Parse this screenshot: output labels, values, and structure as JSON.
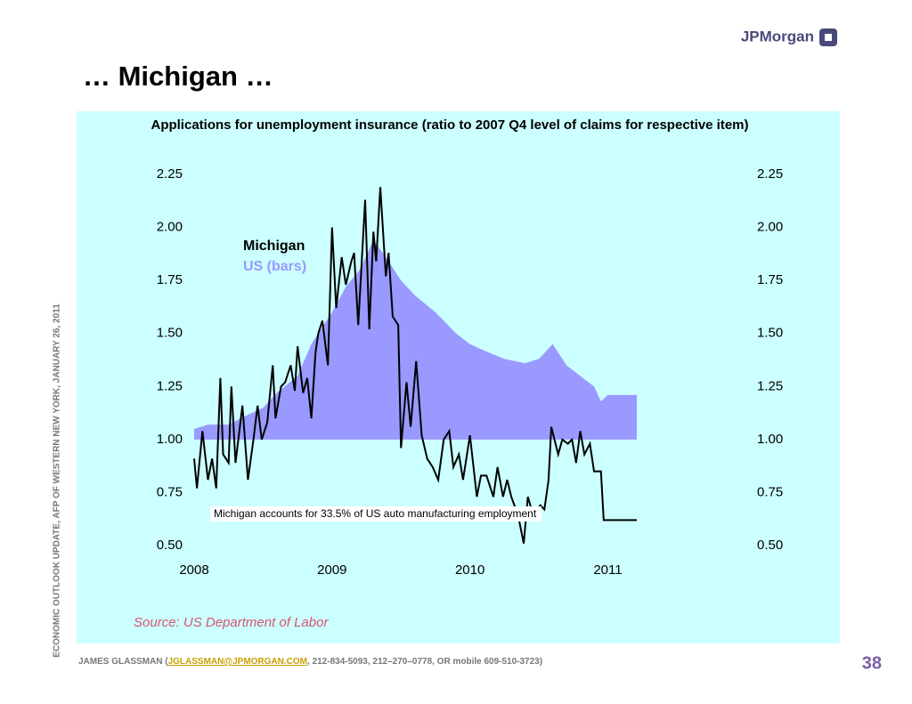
{
  "header": {
    "title": "… Michigan …",
    "logo": "JPMorgan"
  },
  "sidebar": "ECONOMIC OUTLOOK UPDATE, AFP OF WESTERN NEW YORK, JANUARY 26, 2011",
  "footer": {
    "author": "JAMES GLASSMAN (",
    "email": "JGLASSMAN@JPMORGAN.COM",
    "phones": ", 212-834-5093, 212–270–0778, OR mobile 609-510-3723)"
  },
  "page_number": "38",
  "chart_data": {
    "type": "line",
    "title": "Applications for unemployment insurance (ratio to 2007 Q4 level of claims for respective item)",
    "annotation": "Michigan accounts for 33.5% of US auto manufacturing employment",
    "source": "Source: US Department of Labor",
    "xlim": [
      2008,
      2011.21
    ],
    "xticks": [
      2008,
      2009,
      2010,
      2011
    ],
    "ylim": [
      0.5,
      2.25
    ],
    "yticks": [
      {
        "value": 0.5,
        "label": "0.50"
      },
      0.75,
      {
        "value": 1,
        "label": "1.00"
      },
      1.25,
      {
        "value": 1.5,
        "label": "1.50"
      },
      1.75,
      {
        "value": 2,
        "label": "2.00"
      },
      2.25
    ],
    "y2lim": [
      0.5,
      2.25
    ],
    "y2ticks": [
      {
        "value": 0.5,
        "label": "0.50"
      },
      0.75,
      {
        "value": 1,
        "label": "1.00"
      },
      1.25,
      {
        "value": 1.5,
        "label": "1.50"
      },
      1.75,
      {
        "value": 2,
        "label": "2.00"
      },
      2.25
    ],
    "grid": false,
    "series": [
      {
        "name": "Michigan",
        "color": "#000000",
        "style": "line",
        "x": [
          2008.0,
          2008.02,
          2008.06,
          2008.1,
          2008.13,
          2008.16,
          2008.19,
          2008.21,
          2008.25,
          2008.27,
          2008.3,
          2008.35,
          2008.39,
          2008.43,
          2008.46,
          2008.49,
          2008.53,
          2008.57,
          2008.59,
          2008.63,
          2008.66,
          2008.7,
          2008.73,
          2008.75,
          2008.79,
          2008.82,
          2008.85,
          2008.88,
          2008.9,
          2008.93,
          2008.97,
          2009.0,
          2009.03,
          2009.07,
          2009.1,
          2009.14,
          2009.16,
          2009.19,
          2009.24,
          2009.27,
          2009.3,
          2009.32,
          2009.35,
          2009.39,
          2009.41,
          2009.44,
          2009.48,
          2009.5,
          2009.54,
          2009.57,
          2009.61,
          2009.65,
          2009.69,
          2009.73,
          2009.77,
          2009.81,
          2009.85,
          2009.88,
          2009.92,
          2009.95,
          2010.0,
          2010.05,
          2010.08,
          2010.12,
          2010.17,
          2010.2,
          2010.24,
          2010.27,
          2010.3,
          2010.35,
          2010.39,
          2010.42,
          2010.46,
          2010.51,
          2010.54,
          2010.57,
          2010.59,
          2010.64,
          2010.67,
          2010.71,
          2010.74,
          2010.77,
          2010.8,
          2010.83,
          2010.87,
          2010.9,
          2010.95,
          2010.97,
          2011.21
        ],
        "values": [
          0.91,
          0.77,
          1.04,
          0.81,
          0.91,
          0.77,
          1.29,
          0.93,
          0.89,
          1.25,
          0.89,
          1.16,
          0.81,
          1.0,
          1.16,
          1.0,
          1.08,
          1.35,
          1.1,
          1.25,
          1.27,
          1.35,
          1.23,
          1.44,
          1.22,
          1.29,
          1.1,
          1.41,
          1.5,
          1.56,
          1.35,
          2.0,
          1.62,
          1.86,
          1.73,
          1.84,
          1.88,
          1.54,
          2.13,
          1.52,
          1.98,
          1.84,
          2.19,
          1.77,
          1.88,
          1.58,
          1.54,
          0.96,
          1.27,
          1.06,
          1.37,
          1.02,
          0.91,
          0.87,
          0.81,
          1.0,
          1.04,
          0.87,
          0.93,
          0.81,
          1.02,
          0.73,
          0.83,
          0.83,
          0.73,
          0.87,
          0.73,
          0.81,
          0.73,
          0.64,
          0.51,
          0.73,
          0.64,
          0.69,
          0.67,
          0.81,
          1.06,
          0.93,
          1.0,
          0.98,
          1.0,
          0.89,
          1.04,
          0.93,
          0.98,
          0.85,
          0.85,
          0.62,
          0.62
        ]
      },
      {
        "name": "US (bars)",
        "color": "#9999ff",
        "style": "area",
        "baseline": 1,
        "x": [
          2008.0,
          2008.1,
          2008.25,
          2008.4,
          2008.5,
          2008.6,
          2008.75,
          2008.85,
          2008.9,
          2009.0,
          2009.1,
          2009.2,
          2009.3,
          2009.4,
          2009.5,
          2009.6,
          2009.75,
          2009.9,
          2010.0,
          2010.1,
          2010.25,
          2010.4,
          2010.5,
          2010.6,
          2010.7,
          2010.8,
          2010.9,
          2010.95,
          2011.0,
          2011.21
        ],
        "values": [
          1.05,
          1.07,
          1.07,
          1.12,
          1.15,
          1.22,
          1.3,
          1.45,
          1.5,
          1.6,
          1.72,
          1.8,
          1.94,
          1.85,
          1.75,
          1.68,
          1.6,
          1.5,
          1.45,
          1.42,
          1.38,
          1.36,
          1.38,
          1.45,
          1.35,
          1.3,
          1.25,
          1.18,
          1.21,
          1.21
        ]
      }
    ]
  }
}
